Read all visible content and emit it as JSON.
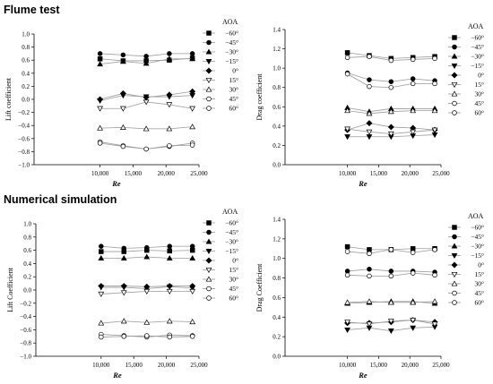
{
  "sections": {
    "top_title": "Flume test",
    "bottom_title": "Numerical simulation"
  },
  "legend": {
    "title": "AOA",
    "entries": [
      "−60°",
      "−45°",
      "−30°",
      "−15°",
      "0°",
      "15°",
      "30°",
      "45°",
      "60°"
    ]
  },
  "chart_data": [
    {
      "type": "line",
      "id": "flume-lift",
      "ylabel": "Lift coefficient",
      "xlabel": "Re",
      "x": [
        10000,
        13500,
        17000,
        20500,
        24000
      ],
      "xlim": [
        0,
        25000
      ],
      "ylim": [
        -1.0,
        1.0
      ],
      "xticks": [
        10000,
        15000,
        20000,
        25000
      ],
      "xtick_labels": [
        "10,000",
        "15,000",
        "20,000",
        "25,000"
      ],
      "yticks": [
        -1.0,
        -0.8,
        -0.6,
        -0.4,
        -0.2,
        0.0,
        0.2,
        0.4,
        0.6,
        0.8,
        1.0
      ],
      "ytick_labels": [
        "−1.0",
        "−0.8",
        "−0.6",
        "−0.4",
        "−0.2",
        "0.0",
        "0.2",
        "0.4",
        "0.6",
        "0.8",
        "1.0"
      ],
      "legend": "right",
      "series": [
        {
          "name": "−60°",
          "values": [
            0.62,
            0.59,
            0.59,
            0.6,
            0.63
          ]
        },
        {
          "name": "−45°",
          "values": [
            0.7,
            0.68,
            0.66,
            0.7,
            0.7
          ]
        },
        {
          "name": "−30°",
          "values": [
            0.54,
            0.58,
            0.55,
            0.62,
            0.62
          ]
        },
        {
          "name": "−15°",
          "values": [
            -0.02,
            0.06,
            0.04,
            0.04,
            0.06
          ]
        },
        {
          "name": "0°",
          "values": [
            0.0,
            0.09,
            0.03,
            0.07,
            0.12
          ]
        },
        {
          "name": "15°",
          "values": [
            -0.14,
            -0.14,
            -0.04,
            -0.08,
            -0.14
          ]
        },
        {
          "name": "30°",
          "values": [
            -0.44,
            -0.43,
            -0.45,
            -0.45,
            -0.42
          ]
        },
        {
          "name": "45°",
          "values": [
            -0.65,
            -0.71,
            -0.76,
            -0.72,
            -0.67
          ]
        },
        {
          "name": "60°",
          "values": [
            -0.67,
            -0.72,
            -0.76,
            -0.71,
            -0.7
          ]
        }
      ]
    },
    {
      "type": "line",
      "id": "flume-drag",
      "ylabel": "Drag coefficient",
      "xlabel": "Re",
      "x": [
        10000,
        13500,
        17000,
        20500,
        24000
      ],
      "xlim": [
        0,
        25000
      ],
      "ylim": [
        0,
        1.4
      ],
      "xticks": [
        10000,
        15000,
        20000,
        25000
      ],
      "xtick_labels": [
        "10,000",
        "15,000",
        "20,000",
        "25,000"
      ],
      "yticks": [
        0.0,
        0.2,
        0.4,
        0.6,
        0.8,
        1.0,
        1.2,
        1.4
      ],
      "ytick_labels": [
        "0.0",
        "0.2",
        "0.4",
        "0.6",
        "0.8",
        "1.0",
        "1.2",
        "1.4"
      ],
      "legend": "right",
      "series": [
        {
          "name": "−60°",
          "values": [
            1.16,
            1.13,
            1.1,
            1.11,
            1.12
          ]
        },
        {
          "name": "−45°",
          "values": [
            0.95,
            0.88,
            0.86,
            0.89,
            0.87
          ]
        },
        {
          "name": "−30°",
          "values": [
            0.59,
            0.55,
            0.58,
            0.58,
            0.58
          ]
        },
        {
          "name": "−15°",
          "values": [
            0.29,
            0.29,
            0.29,
            0.3,
            0.31
          ]
        },
        {
          "name": "0°",
          "values": [
            0.36,
            0.43,
            0.39,
            0.38,
            0.36
          ]
        },
        {
          "name": "15°",
          "values": [
            0.37,
            0.34,
            0.32,
            0.34,
            0.36
          ]
        },
        {
          "name": "30°",
          "values": [
            0.56,
            0.53,
            0.55,
            0.56,
            0.56
          ]
        },
        {
          "name": "45°",
          "values": [
            0.94,
            0.81,
            0.8,
            0.84,
            0.84
          ]
        },
        {
          "name": "60°",
          "values": [
            1.11,
            1.12,
            1.08,
            1.09,
            1.1
          ]
        }
      ]
    },
    {
      "type": "line",
      "id": "sim-lift",
      "ylabel": "Lift Coefficient",
      "xlabel": "Re",
      "x": [
        10000,
        13500,
        17000,
        20500,
        24000
      ],
      "xlim": [
        0,
        25000
      ],
      "ylim": [
        -1.0,
        1.0
      ],
      "xticks": [
        10000,
        15000,
        20000,
        25000
      ],
      "xtick_labels": [
        "10,000",
        "15,000",
        "20,000",
        "25,000"
      ],
      "yticks": [
        -1.0,
        -0.8,
        -0.6,
        -0.4,
        -0.2,
        0.0,
        0.2,
        0.4,
        0.6,
        0.8,
        1.0
      ],
      "ytick_labels": [
        "−1.0",
        "−0.8",
        "−0.6",
        "−0.4",
        "−0.2",
        "0.0",
        "0.2",
        "0.4",
        "0.6",
        "0.8",
        "1.0"
      ],
      "legend": "right",
      "series": [
        {
          "name": "−60°",
          "values": [
            0.58,
            0.58,
            0.6,
            0.59,
            0.6
          ]
        },
        {
          "name": "−45°",
          "values": [
            0.66,
            0.63,
            0.64,
            0.66,
            0.66
          ]
        },
        {
          "name": "−30°",
          "values": [
            0.48,
            0.48,
            0.5,
            0.48,
            0.48
          ]
        },
        {
          "name": "−15°",
          "values": [
            0.04,
            0.04,
            0.02,
            0.05,
            0.03
          ]
        },
        {
          "name": "0°",
          "values": [
            0.06,
            0.06,
            0.05,
            0.06,
            0.06
          ]
        },
        {
          "name": "15°",
          "values": [
            -0.06,
            -0.04,
            -0.02,
            -0.02,
            -0.02
          ]
        },
        {
          "name": "30°",
          "values": [
            -0.5,
            -0.47,
            -0.49,
            -0.47,
            -0.48
          ]
        },
        {
          "name": "45°",
          "values": [
            -0.67,
            -0.69,
            -0.71,
            -0.68,
            -0.69
          ]
        },
        {
          "name": "60°",
          "values": [
            -0.71,
            -0.7,
            -0.69,
            -0.71,
            -0.7
          ]
        }
      ]
    },
    {
      "type": "line",
      "id": "sim-drag",
      "ylabel": "Drag Coefficient",
      "xlabel": "Re",
      "x": [
        10000,
        13500,
        17000,
        20500,
        24000
      ],
      "xlim": [
        0,
        25000
      ],
      "ylim": [
        0,
        1.4
      ],
      "xticks": [
        10000,
        15000,
        20000,
        25000
      ],
      "xtick_labels": [
        "10,000",
        "15,000",
        "20,000",
        "25,000"
      ],
      "yticks": [
        0.0,
        0.2,
        0.4,
        0.6,
        0.8,
        1.0,
        1.2,
        1.4
      ],
      "ytick_labels": [
        "0.0",
        "0.2",
        "0.4",
        "0.6",
        "0.8",
        "1.0",
        "1.2",
        "1.4"
      ],
      "legend": "right",
      "series": [
        {
          "name": "−60°",
          "values": [
            1.12,
            1.09,
            1.09,
            1.1,
            1.1
          ]
        },
        {
          "name": "−45°",
          "values": [
            0.87,
            0.89,
            0.87,
            0.87,
            0.86
          ]
        },
        {
          "name": "−30°",
          "values": [
            0.54,
            0.55,
            0.56,
            0.56,
            0.54
          ]
        },
        {
          "name": "−15°",
          "values": [
            0.27,
            0.29,
            0.26,
            0.29,
            0.3
          ]
        },
        {
          "name": "0°",
          "values": [
            0.34,
            0.34,
            0.35,
            0.37,
            0.35
          ]
        },
        {
          "name": "15°",
          "values": [
            0.35,
            0.33,
            0.36,
            0.37,
            0.33
          ]
        },
        {
          "name": "30°",
          "values": [
            0.55,
            0.56,
            0.55,
            0.55,
            0.56
          ]
        },
        {
          "name": "45°",
          "values": [
            0.83,
            0.82,
            0.82,
            0.85,
            0.83
          ]
        },
        {
          "name": "60°",
          "values": [
            1.07,
            1.05,
            1.09,
            1.06,
            1.09
          ]
        }
      ]
    }
  ]
}
